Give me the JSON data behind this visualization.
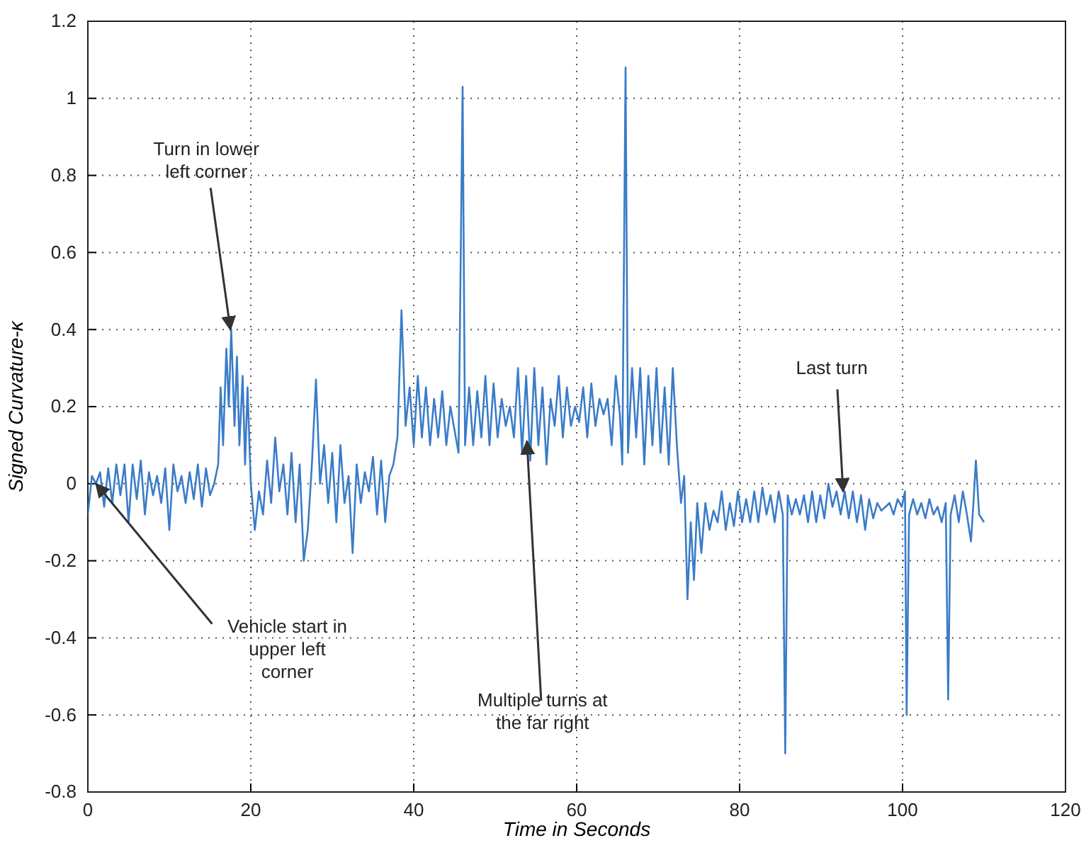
{
  "chart_data": {
    "type": "line",
    "xlabel": "Time in Seconds",
    "ylabel": "Signed Curvature-κ",
    "xlim": [
      0,
      120
    ],
    "xticks": [
      0,
      20,
      40,
      60,
      80,
      100,
      120
    ],
    "ylim": [
      -0.8,
      1.2
    ],
    "yticks": [
      -0.8,
      -0.6,
      -0.4,
      -0.2,
      0,
      0.2,
      0.4,
      0.6,
      0.8,
      1,
      1.2
    ],
    "grid": true,
    "line_style": "solid",
    "marker": "none",
    "annotations": [
      {
        "text": "Turn in lower left corner",
        "x": 17.5,
        "y": 0.4
      },
      {
        "text": "Vehicle start in upper left corner",
        "x": 1,
        "y": 0
      },
      {
        "text": "Multiple turns at the far right",
        "x": 53.9,
        "y": 0.11
      },
      {
        "text": "Last turn",
        "x": 92.7,
        "y": -0.02
      }
    ],
    "series": [
      {
        "color": "#3a7cc8",
        "x": [
          0,
          0.5,
          1,
          1.5,
          2,
          2.5,
          3,
          3.5,
          4,
          4.5,
          5,
          5.5,
          6,
          6.5,
          7,
          7.5,
          8,
          8.5,
          9,
          9.5,
          10,
          10.5,
          11,
          11.5,
          12,
          12.5,
          13,
          13.5,
          14,
          14.5,
          15,
          15.5,
          16,
          16.3,
          16.6,
          17,
          17.3,
          17.6,
          18,
          18.3,
          18.6,
          19,
          19.3,
          19.6,
          20,
          20.5,
          21,
          21.5,
          22,
          22.5,
          23,
          23.5,
          24,
          24.5,
          25,
          25.5,
          26,
          26.5,
          27,
          27.5,
          28,
          28.5,
          29,
          29.5,
          30,
          30.5,
          31,
          31.5,
          32,
          32.5,
          33,
          33.5,
          34,
          34.5,
          35,
          35.5,
          36,
          36.5,
          37,
          37.5,
          38,
          38.5,
          39,
          39.5,
          40,
          40.5,
          41,
          41.5,
          42,
          42.5,
          43,
          43.5,
          44,
          44.5,
          45,
          45.5,
          46,
          46.3,
          46.8,
          47.3,
          47.8,
          48.3,
          48.8,
          49.3,
          49.8,
          50.3,
          50.8,
          51.3,
          51.8,
          52.3,
          52.8,
          53.3,
          53.8,
          54.3,
          54.8,
          55.3,
          55.8,
          56.3,
          56.8,
          57.3,
          57.8,
          58.3,
          58.8,
          59.3,
          59.8,
          60.3,
          60.8,
          61.3,
          61.8,
          62.3,
          62.8,
          63.3,
          63.8,
          64.3,
          64.8,
          65.3,
          65.6,
          66,
          66.3,
          66.8,
          67.3,
          67.8,
          68.3,
          68.8,
          69.3,
          69.8,
          70.3,
          70.8,
          71.3,
          71.8,
          72.3,
          72.8,
          73.2,
          73.6,
          74,
          74.4,
          74.8,
          75.3,
          75.8,
          76.3,
          76.8,
          77.3,
          77.8,
          78.3,
          78.8,
          79.3,
          79.8,
          80.3,
          80.8,
          81.3,
          81.8,
          82.3,
          82.8,
          83.3,
          83.8,
          84.3,
          84.8,
          85.3,
          85.6,
          85.9,
          86.4,
          86.9,
          87.4,
          87.9,
          88.4,
          88.9,
          89.4,
          89.9,
          90.4,
          90.9,
          91.4,
          91.9,
          92.4,
          92.9,
          93.4,
          93.9,
          94.4,
          94.9,
          95.4,
          95.9,
          96.4,
          96.9,
          97.4,
          97.9,
          98.4,
          98.9,
          99.4,
          99.9,
          100.3,
          100.5,
          100.8,
          101.3,
          101.8,
          102.3,
          102.8,
          103.3,
          103.8,
          104.3,
          104.8,
          105.3,
          105.6,
          105.9,
          106.4,
          106.9,
          107.4,
          107.9,
          108.4,
          108.7,
          109,
          109.4,
          110
        ],
        "values": [
          -0.08,
          0.02,
          0,
          0.03,
          -0.06,
          0.04,
          -0.05,
          0.05,
          -0.03,
          0.05,
          -0.1,
          0.05,
          -0.04,
          0.06,
          -0.08,
          0.03,
          -0.03,
          0.02,
          -0.05,
          0.04,
          -0.12,
          0.05,
          -0.02,
          0.02,
          -0.05,
          0.03,
          -0.04,
          0.05,
          -0.06,
          0.04,
          -0.03,
          0,
          0.05,
          0.25,
          0.1,
          0.35,
          0.2,
          0.4,
          0.15,
          0.33,
          0.1,
          0.28,
          0.05,
          0.25,
          0,
          -0.12,
          -0.02,
          -0.08,
          0.06,
          -0.05,
          0.12,
          -0.02,
          0.05,
          -0.08,
          0.08,
          -0.1,
          0.05,
          -0.2,
          -0.12,
          0.05,
          0.27,
          0,
          0.1,
          -0.05,
          0.08,
          -0.1,
          0.1,
          -0.05,
          0.02,
          -0.18,
          0.05,
          -0.05,
          0.03,
          -0.02,
          0.07,
          -0.08,
          0.06,
          -0.1,
          0.02,
          0.05,
          0.12,
          0.45,
          0.15,
          0.25,
          0.1,
          0.28,
          0.12,
          0.25,
          0.1,
          0.22,
          0.12,
          0.24,
          0.1,
          0.2,
          0.14,
          0.08,
          1.03,
          0.1,
          0.25,
          0.1,
          0.24,
          0.12,
          0.28,
          0.1,
          0.26,
          0.12,
          0.22,
          0.15,
          0.2,
          0.12,
          0.3,
          0.08,
          0.28,
          0.06,
          0.3,
          0.1,
          0.25,
          0.05,
          0.22,
          0.15,
          0.28,
          0.12,
          0.25,
          0.15,
          0.2,
          0.16,
          0.25,
          0.12,
          0.26,
          0.15,
          0.22,
          0.18,
          0.22,
          0.1,
          0.28,
          0.18,
          0.05,
          1.08,
          0.08,
          0.3,
          0.12,
          0.3,
          0.05,
          0.28,
          0.1,
          0.3,
          0.08,
          0.25,
          0.05,
          0.3,
          0.1,
          -0.05,
          0.02,
          -0.3,
          -0.1,
          -0.25,
          -0.05,
          -0.18,
          -0.05,
          -0.12,
          -0.07,
          -0.1,
          -0.02,
          -0.12,
          -0.05,
          -0.11,
          -0.02,
          -0.1,
          -0.04,
          -0.1,
          -0.02,
          -0.1,
          -0.01,
          -0.08,
          -0.03,
          -0.1,
          -0.02,
          -0.08,
          -0.7,
          -0.03,
          -0.08,
          -0.04,
          -0.08,
          -0.03,
          -0.1,
          -0.02,
          -0.1,
          -0.03,
          -0.09,
          0,
          -0.06,
          -0.02,
          -0.08,
          -0.02,
          -0.09,
          -0.02,
          -0.1,
          -0.03,
          -0.12,
          -0.04,
          -0.09,
          -0.05,
          -0.07,
          -0.06,
          -0.05,
          -0.08,
          -0.04,
          -0.06,
          -0.02,
          -0.6,
          -0.08,
          -0.04,
          -0.08,
          -0.05,
          -0.09,
          -0.04,
          -0.08,
          -0.06,
          -0.1,
          -0.05,
          -0.56,
          -0.08,
          -0.03,
          -0.1,
          -0.02,
          -0.08,
          -0.15,
          -0.05,
          0.06,
          -0.08,
          -0.1
        ]
      }
    ]
  }
}
